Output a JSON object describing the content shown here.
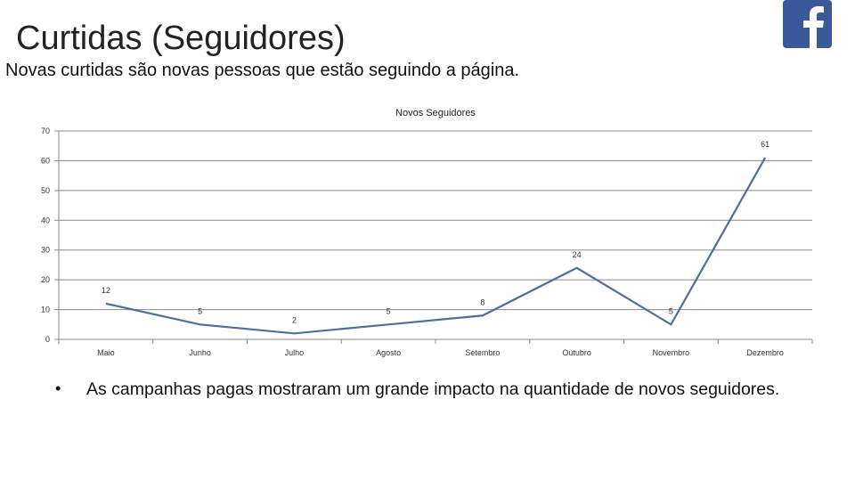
{
  "slide": {
    "title": "Curtidas (Seguidores)",
    "subtitle": "Novas curtidas são novas pessoas que estão seguindo a página.",
    "bullet": "As campanhas pagas mostraram um grande impacto na quantidade de novos seguidores."
  },
  "icons": {
    "brand": "facebook-logo-icon",
    "brand_color": "#3b5998"
  },
  "chart_data": {
    "type": "line",
    "title": "Novos Seguidores",
    "categories": [
      "Maio",
      "Junho",
      "Julho",
      "Agosto",
      "Setembro",
      "Outubro",
      "Novembro",
      "Dezembro"
    ],
    "series": [
      {
        "values": [
          12,
          5,
          2,
          5,
          8,
          24,
          5,
          61
        ],
        "color": "#4a6fa5"
      }
    ],
    "ylim": [
      0,
      70
    ],
    "yticks": [
      0,
      10,
      20,
      30,
      40,
      50,
      60,
      70
    ],
    "grid": true,
    "legend": "none",
    "data_labels": true
  }
}
